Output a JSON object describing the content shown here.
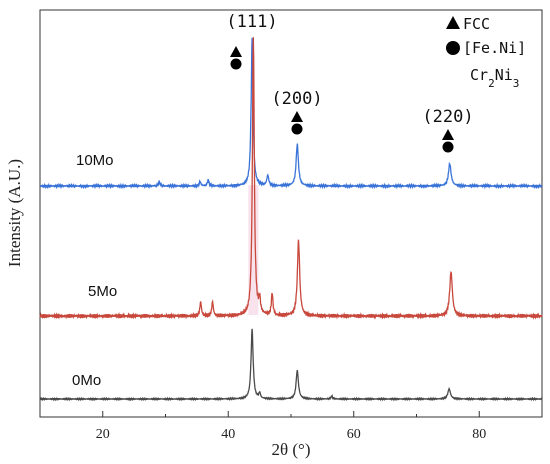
{
  "chart_data": {
    "type": "line",
    "title": "",
    "xlabel": "2θ (°)",
    "ylabel": "Intensity (A.U.)",
    "xlim": [
      10,
      90
    ],
    "xticks": [
      20,
      40,
      60,
      80
    ],
    "grid": false,
    "series": [
      {
        "name": "10Mo",
        "color": "#3a73d8",
        "baseline": 0,
        "peaks": [
          {
            "x": 29.0,
            "h": 0.03,
            "w": 0.15
          },
          {
            "x": 35.5,
            "h": 0.03,
            "w": 0.15
          },
          {
            "x": 36.8,
            "h": 0.04,
            "w": 0.15
          },
          {
            "x": 43.8,
            "h": 1.0,
            "w": 0.18
          },
          {
            "x": 46.3,
            "h": 0.07,
            "w": 0.18
          },
          {
            "x": 51.0,
            "h": 0.28,
            "w": 0.22
          },
          {
            "x": 75.3,
            "h": 0.15,
            "w": 0.25
          }
        ]
      },
      {
        "name": "5Mo",
        "color": "#c8483c",
        "baseline": 0,
        "peaks": [
          {
            "x": 35.6,
            "h": 0.05,
            "w": 0.15
          },
          {
            "x": 37.5,
            "h": 0.05,
            "w": 0.15
          },
          {
            "x": 44.0,
            "h": 1.0,
            "w": 0.18
          },
          {
            "x": 45.0,
            "h": 0.05,
            "w": 0.15
          },
          {
            "x": 47.0,
            "h": 0.08,
            "w": 0.15
          },
          {
            "x": 51.2,
            "h": 0.27,
            "w": 0.22
          },
          {
            "x": 75.5,
            "h": 0.16,
            "w": 0.25
          }
        ]
      },
      {
        "name": "0Mo",
        "color": "#4a4a4a",
        "baseline": 0,
        "peaks": [
          {
            "x": 43.8,
            "h": 0.76,
            "w": 0.2
          },
          {
            "x": 45.0,
            "h": 0.06,
            "w": 0.15
          },
          {
            "x": 51.0,
            "h": 0.31,
            "w": 0.22
          },
          {
            "x": 56.5,
            "h": 0.03,
            "w": 0.15
          },
          {
            "x": 75.2,
            "h": 0.11,
            "w": 0.25
          }
        ]
      }
    ],
    "peak_labels": [
      {
        "text": "(111)",
        "x": 44.0,
        "markers": [
          "triangle",
          "circle"
        ]
      },
      {
        "text": "(200)",
        "x": 51.0,
        "markers": [
          "triangle",
          "circle"
        ]
      },
      {
        "text": "(220)",
        "x": 75.3,
        "markers": [
          "triangle",
          "circle"
        ]
      }
    ],
    "legend": {
      "placement": "top-right",
      "entries": [
        {
          "marker": "triangle",
          "label": "FCC"
        },
        {
          "marker": "circle",
          "label": "[Fe.Ni]"
        },
        {
          "marker": "none",
          "label": "Cr2Ni3"
        }
      ]
    },
    "highlight": {
      "x": 44.0,
      "color": "#f3cfe0"
    }
  }
}
